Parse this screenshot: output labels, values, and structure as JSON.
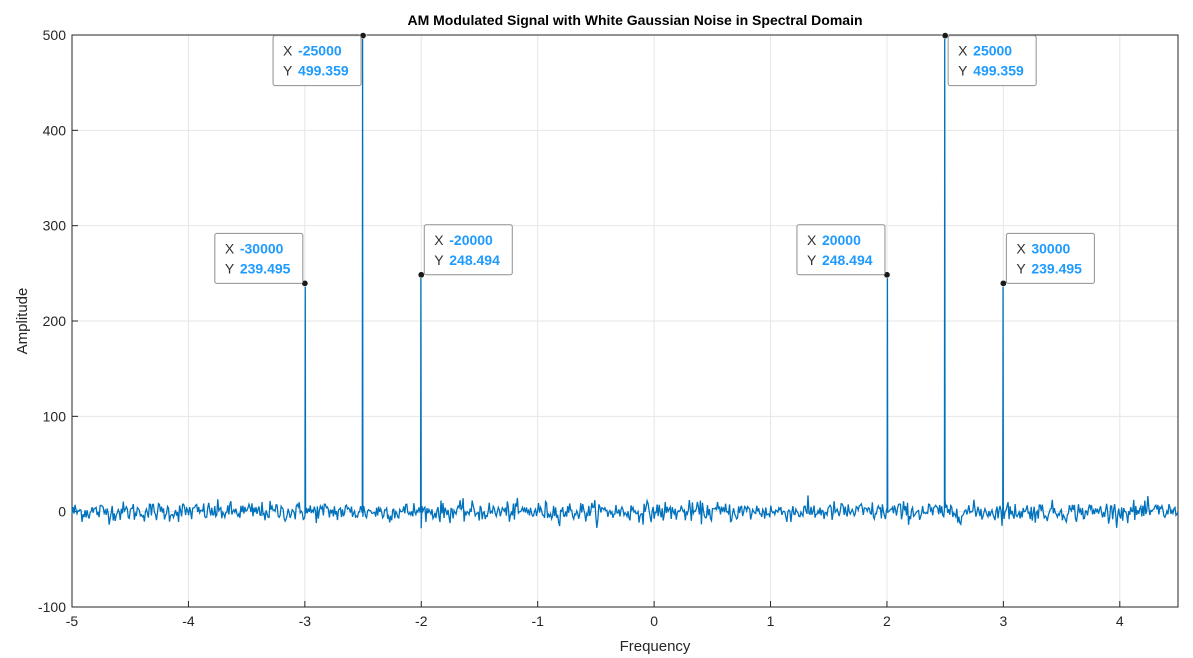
{
  "chart_data": {
    "type": "line",
    "title": "AM Modulated Signal with White Gaussian Noise in Spectral Domain",
    "xlabel": "Frequency",
    "ylabel": "Amplitude",
    "xlim": [
      -5,
      4.5
    ],
    "ylim": [
      -100,
      500
    ],
    "xticks": [
      "-5",
      "-4",
      "-3",
      "-2",
      "-1",
      "0",
      "1",
      "2",
      "3",
      "4"
    ],
    "yticks": [
      "-100",
      "0",
      "100",
      "200",
      "300",
      "400",
      "500"
    ],
    "grid": true,
    "line_color": "#0072BD",
    "noise_level": 0,
    "peaks": [
      {
        "x": -3.0,
        "y": 239.495
      },
      {
        "x": -2.5,
        "y": 499.359
      },
      {
        "x": -2.0,
        "y": 248.494
      },
      {
        "x": 2.0,
        "y": 248.494
      },
      {
        "x": 2.5,
        "y": 499.359
      },
      {
        "x": 3.0,
        "y": 239.495
      }
    ],
    "datatips": [
      {
        "x_key": "X",
        "x_value": "-30000",
        "y_key": "Y",
        "y_value": "239.495",
        "at": {
          "x": -3.0,
          "y": 239.495
        },
        "side": "left"
      },
      {
        "x_key": "X",
        "x_value": "-25000",
        "y_key": "Y",
        "y_value": "499.359",
        "at": {
          "x": -2.5,
          "y": 499.359
        },
        "side": "left"
      },
      {
        "x_key": "X",
        "x_value": "-20000",
        "y_key": "Y",
        "y_value": "248.494",
        "at": {
          "x": -2.0,
          "y": 248.494
        },
        "side": "right"
      },
      {
        "x_key": "X",
        "x_value": "20000",
        "y_key": "Y",
        "y_value": "248.494",
        "at": {
          "x": 2.0,
          "y": 248.494
        },
        "side": "left"
      },
      {
        "x_key": "X",
        "x_value": "25000",
        "y_key": "Y",
        "y_value": "499.359",
        "at": {
          "x": 2.5,
          "y": 499.359
        },
        "side": "right"
      },
      {
        "x_key": "X",
        "x_value": "30000",
        "y_key": "Y",
        "y_value": "239.495",
        "at": {
          "x": 3.0,
          "y": 239.495
        },
        "side": "right"
      }
    ]
  }
}
